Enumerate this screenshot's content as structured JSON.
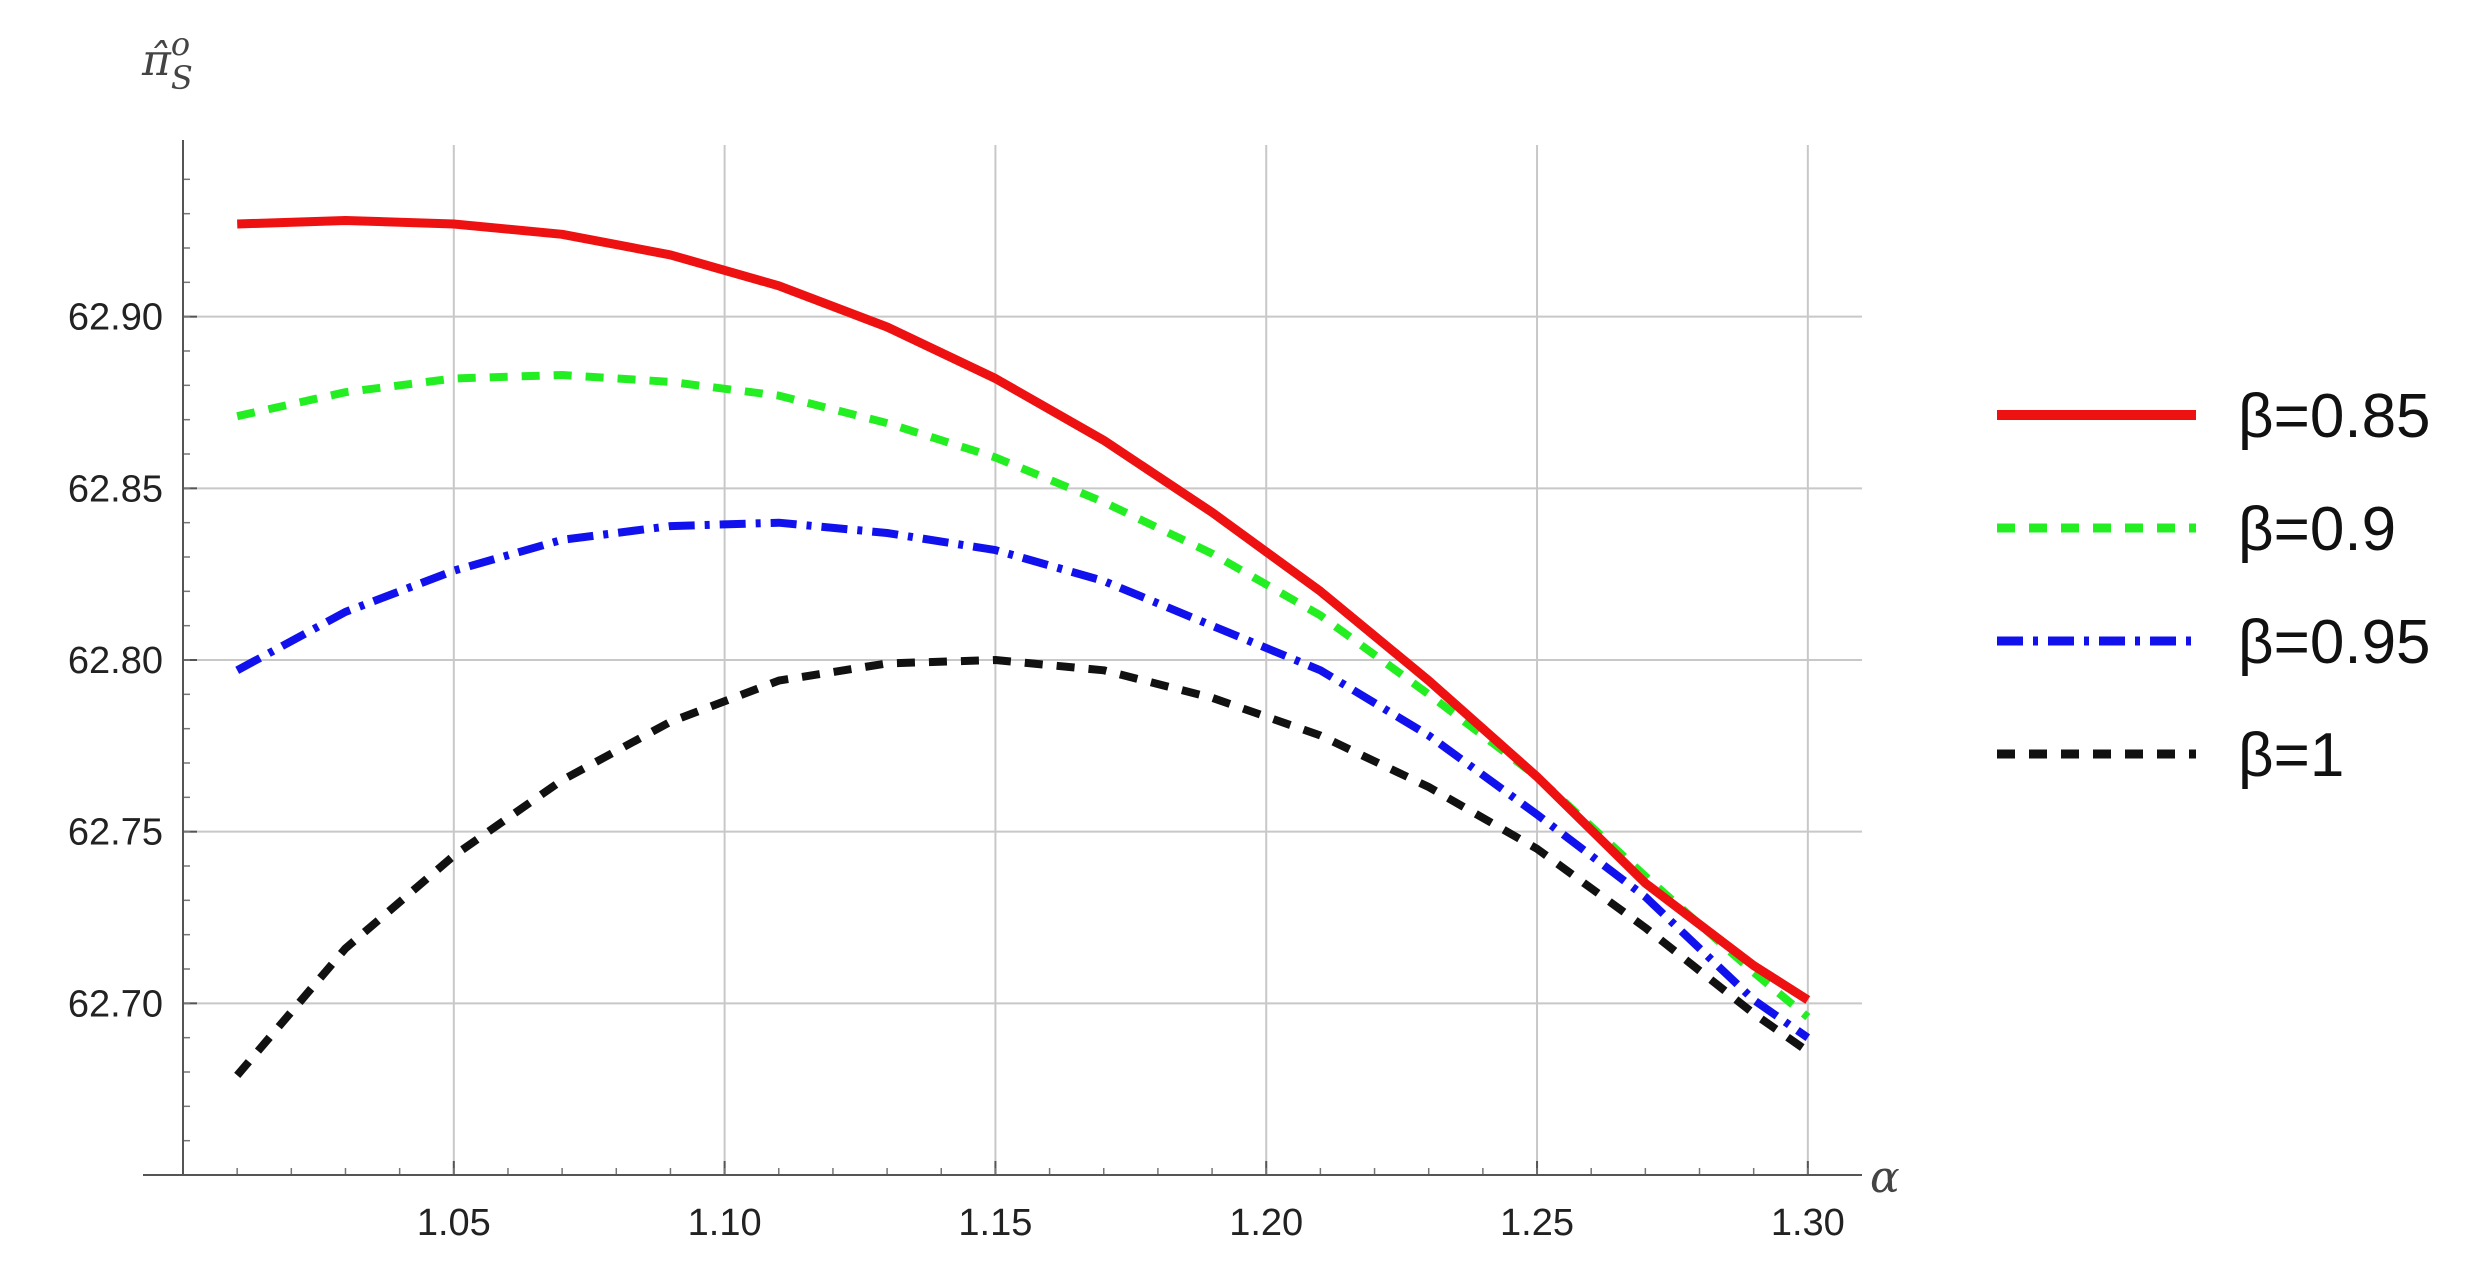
{
  "chart_data": {
    "type": "line",
    "xlabel": "α",
    "ylabel": "π̂",
    "ylabel_sup": "o",
    "ylabel_sub": "S",
    "xlim": [
      1.0,
      1.31
    ],
    "ylim": [
      62.65,
      62.95
    ],
    "x_ticks": [
      1.05,
      1.1,
      1.15,
      1.2,
      1.25,
      1.3
    ],
    "x_tick_labels": [
      "1.05",
      "1.10",
      "1.15",
      "1.20",
      "1.25",
      "1.30"
    ],
    "y_ticks": [
      62.7,
      62.75,
      62.8,
      62.85,
      62.9
    ],
    "y_tick_labels": [
      "62.70",
      "62.75",
      "62.80",
      "62.85",
      "62.90"
    ],
    "grid": true,
    "legend_position": "right",
    "x": [
      1.01,
      1.03,
      1.05,
      1.07,
      1.09,
      1.11,
      1.13,
      1.15,
      1.17,
      1.19,
      1.21,
      1.23,
      1.25,
      1.27,
      1.29,
      1.3
    ],
    "series": [
      {
        "name": "β=0.85",
        "color": "#ee1111",
        "dash": "solid",
        "values": [
          62.927,
          62.928,
          62.927,
          62.924,
          62.918,
          62.909,
          62.897,
          62.882,
          62.864,
          62.843,
          62.82,
          62.794,
          62.766,
          62.735,
          62.711,
          62.701
        ]
      },
      {
        "name": "β=0.9",
        "color": "#22ee22",
        "dash": "dashed",
        "values": [
          62.871,
          62.878,
          62.882,
          62.883,
          62.881,
          62.877,
          62.869,
          62.859,
          62.846,
          62.831,
          62.813,
          62.79,
          62.766,
          62.737,
          62.709,
          62.696
        ]
      },
      {
        "name": "β=0.95",
        "color": "#1111ee",
        "dash": "dashdot",
        "values": [
          62.797,
          62.814,
          62.826,
          62.835,
          62.839,
          62.84,
          62.837,
          62.832,
          62.823,
          62.81,
          62.797,
          62.778,
          62.755,
          62.731,
          62.701,
          62.69
        ]
      },
      {
        "name": "β=1",
        "color": "#111111",
        "dash": "dashed",
        "values": [
          62.679,
          62.716,
          62.743,
          62.765,
          62.782,
          62.794,
          62.799,
          62.8,
          62.797,
          62.789,
          62.778,
          62.763,
          62.745,
          62.722,
          62.697,
          62.686
        ]
      }
    ]
  }
}
